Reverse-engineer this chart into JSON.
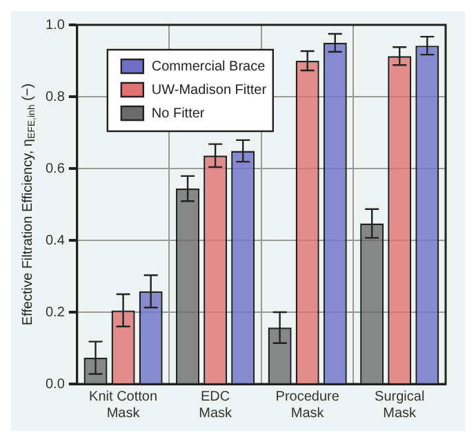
{
  "chart_data": {
    "type": "bar",
    "ylabel": "Effective Filtration Efficiency, η$_{EFE,inh}$ (−)",
    "categories": [
      "Knit Cotton Mask",
      "EDC Mask",
      "Procedure Mask",
      "Surgical Mask"
    ],
    "series": [
      {
        "name": "No Fitter",
        "color": "#6b6b6b",
        "values": [
          0.073,
          0.544,
          0.157,
          0.447
        ],
        "errors": [
          0.045,
          0.035,
          0.043,
          0.04
        ]
      },
      {
        "name": "UW-Madison Fitter",
        "color": "#e07272",
        "values": [
          0.205,
          0.636,
          0.9,
          0.913
        ],
        "errors": [
          0.045,
          0.032,
          0.027,
          0.025
        ]
      },
      {
        "name": "Commercial Brace",
        "color": "#6b70c6",
        "values": [
          0.258,
          0.649,
          0.95,
          0.942
        ],
        "errors": [
          0.045,
          0.03,
          0.025,
          0.025
        ]
      }
    ],
    "ylim": [
      0,
      1
    ],
    "yticks": [
      {
        "value": 0,
        "label": "0.0"
      },
      0.2,
      0.4,
      0.6,
      0.8,
      {
        "value": 1,
        "label": "1.0"
      }
    ],
    "grid": true,
    "legend": "top left"
  }
}
